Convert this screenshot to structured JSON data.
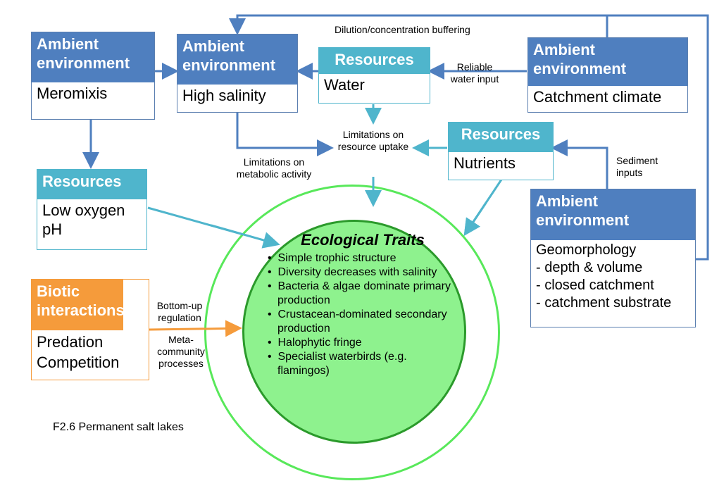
{
  "diagram": {
    "caption": "F2.6 Permanent salt lakes",
    "nodes": {
      "meromixis": {
        "header": "Ambient environment",
        "lines": [
          "Meromixis"
        ]
      },
      "high_salinity": {
        "header": "Ambient environment",
        "lines": [
          "High salinity"
        ]
      },
      "water": {
        "header": "Resources",
        "lines": [
          "Water"
        ]
      },
      "catchment_climate": {
        "header": "Ambient environment",
        "lines": [
          "Catchment climate"
        ]
      },
      "nutrients": {
        "header": "Resources",
        "lines": [
          "Nutrients"
        ]
      },
      "low_oxygen": {
        "header": "Resources",
        "lines": [
          "Low oxygen",
          "pH"
        ]
      },
      "geomorphology": {
        "header": "Ambient environment",
        "lines": [
          "Geomorphology",
          "- depth & volume",
          "- closed catchment",
          "- catchment substrate"
        ]
      },
      "biotic": {
        "header": "Biotic interactions",
        "lines": [
          "Predation",
          "Competition"
        ]
      }
    },
    "edge_labels": {
      "dilution": "Dilution/concentration buffering",
      "reliable_water": "Reliable water input",
      "limitations_uptake": "Limitations on resource uptake",
      "limitations_metabolic": "Limitations on metabolic activity",
      "sediment_inputs": "Sediment inputs",
      "bottom_up": "Bottom-up regulation",
      "metacommunity": "Meta-community processes"
    },
    "traits": {
      "title": "Ecological Traits",
      "items": [
        "Simple trophic structure",
        "Diversity decreases with salinity",
        "Bacteria & algae dominate primary production",
        "Crustacean-dominated secondary production",
        "Halophytic fringe",
        "Specialist waterbirds (e.g. flamingos)"
      ]
    },
    "colors": {
      "ambient": "#4f7fbf",
      "resources": "#4fb5cc",
      "biotic": "#f59b3b",
      "traits_fill": "#8ef28e",
      "outer_ring": "#58e85a"
    }
  }
}
